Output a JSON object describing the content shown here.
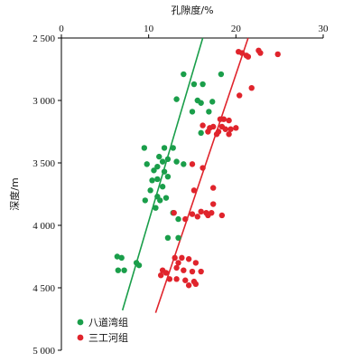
{
  "chart_data": {
    "type": "scatter",
    "title": "",
    "x_axis": {
      "label": "孔隙度/%",
      "position": "top",
      "ticks": [
        0,
        10,
        20,
        30
      ],
      "range": [
        0,
        30
      ]
    },
    "y_axis": {
      "label": "深度/m",
      "inverted": true,
      "ticks": [
        2500,
        3000,
        3500,
        4000,
        4500,
        5000
      ],
      "tick_labels": [
        "2 500",
        "3 000",
        "3 500",
        "4 000",
        "4 500",
        "5 000"
      ],
      "range": [
        2500,
        5000
      ]
    },
    "grid": false,
    "legend": {
      "placement": "bottom-left"
    },
    "series": [
      {
        "name": "八道湾组",
        "color": "#1a9e4a",
        "points": [
          [
            14,
            2790
          ],
          [
            15.2,
            2870
          ],
          [
            16.2,
            2870
          ],
          [
            18.3,
            2790
          ],
          [
            13.2,
            2990
          ],
          [
            15.6,
            3000
          ],
          [
            16.0,
            3020
          ],
          [
            17.3,
            3010
          ],
          [
            15.0,
            3090
          ],
          [
            16.9,
            3090
          ],
          [
            16.0,
            3260
          ],
          [
            9.5,
            3380
          ],
          [
            11.8,
            3380
          ],
          [
            12.8,
            3380
          ],
          [
            11.2,
            3450
          ],
          [
            12.2,
            3470
          ],
          [
            11.6,
            3490
          ],
          [
            9.8,
            3510
          ],
          [
            13.2,
            3490
          ],
          [
            14.0,
            3510
          ],
          [
            11.0,
            3530
          ],
          [
            11.8,
            3570
          ],
          [
            10.6,
            3560
          ],
          [
            12.2,
            3610
          ],
          [
            11.0,
            3630
          ],
          [
            10.4,
            3640
          ],
          [
            11.6,
            3690
          ],
          [
            10.2,
            3720
          ],
          [
            11.0,
            3770
          ],
          [
            12.0,
            3780
          ],
          [
            11.3,
            3800
          ],
          [
            9.6,
            3800
          ],
          [
            10.8,
            3860
          ],
          [
            12.8,
            3900
          ],
          [
            13.4,
            3950
          ],
          [
            12.2,
            4100
          ],
          [
            13.4,
            4100
          ],
          [
            6.4,
            4250
          ],
          [
            6.9,
            4260
          ],
          [
            6.5,
            4360
          ],
          [
            7.2,
            4360
          ],
          [
            8.6,
            4300
          ],
          [
            8.9,
            4320
          ]
        ]
      },
      {
        "name": "三工河组",
        "color": "#e0242c",
        "points": [
          [
            20.3,
            2610
          ],
          [
            20.7,
            2620
          ],
          [
            22.6,
            2600
          ],
          [
            22.8,
            2620
          ],
          [
            21.2,
            2640
          ],
          [
            24.8,
            2630
          ],
          [
            21.4,
            2650
          ],
          [
            21.8,
            2900
          ],
          [
            20.4,
            2960
          ],
          [
            18.2,
            3150
          ],
          [
            18.6,
            3150
          ],
          [
            19.2,
            3160
          ],
          [
            16.2,
            3200
          ],
          [
            17.0,
            3220
          ],
          [
            17.4,
            3210
          ],
          [
            18.4,
            3210
          ],
          [
            18.8,
            3230
          ],
          [
            19.4,
            3230
          ],
          [
            20.0,
            3220
          ],
          [
            16.8,
            3250
          ],
          [
            18.0,
            3250
          ],
          [
            17.8,
            3270
          ],
          [
            19.2,
            3270
          ],
          [
            15.0,
            3510
          ],
          [
            16.2,
            3540
          ],
          [
            15.2,
            3720
          ],
          [
            17.4,
            3700
          ],
          [
            17.4,
            3830
          ],
          [
            16.0,
            3890
          ],
          [
            16.6,
            3900
          ],
          [
            17.2,
            3900
          ],
          [
            16.8,
            3920
          ],
          [
            15.0,
            3910
          ],
          [
            15.6,
            3930
          ],
          [
            18.4,
            3920
          ],
          [
            14.2,
            3950
          ],
          [
            12.9,
            3900
          ],
          [
            13.0,
            4260
          ],
          [
            13.8,
            4260
          ],
          [
            14.6,
            4270
          ],
          [
            13.4,
            4300
          ],
          [
            15.4,
            4300
          ],
          [
            13.2,
            4340
          ],
          [
            14.0,
            4360
          ],
          [
            15.0,
            4370
          ],
          [
            16.0,
            4370
          ],
          [
            11.6,
            4360
          ],
          [
            12.0,
            4380
          ],
          [
            11.4,
            4400
          ],
          [
            12.4,
            4430
          ],
          [
            13.2,
            4430
          ],
          [
            14.2,
            4440
          ],
          [
            15.2,
            4450
          ],
          [
            14.6,
            4480
          ],
          [
            15.4,
            4470
          ]
        ]
      }
    ],
    "trendlines": [
      {
        "series": "八道湾组",
        "color": "#1a9e4a",
        "from": [
          16.2,
          2500
        ],
        "to": [
          7.0,
          4680
        ]
      },
      {
        "series": "三工河组",
        "color": "#e0242c",
        "from": [
          21.4,
          2500
        ],
        "to": [
          10.8,
          4700
        ]
      }
    ]
  }
}
